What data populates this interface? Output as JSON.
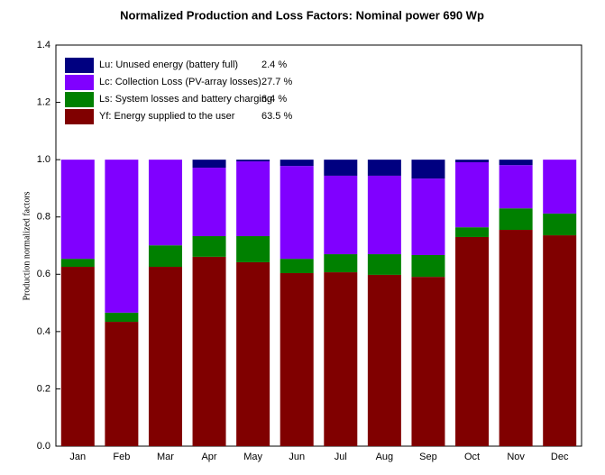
{
  "chart_data": {
    "type": "stacked_bar",
    "title": "Normalized Production and Loss Factors:  Nominal power 690 Wp",
    "y_label": "Production normalized factors",
    "categories": [
      "Jan",
      "Feb",
      "Mar",
      "Apr",
      "May",
      "Jun",
      "Jul",
      "Aug",
      "Sep",
      "Oct",
      "Nov",
      "Dec"
    ],
    "ylim": [
      0,
      1.4
    ],
    "yticks": [
      {
        "value": 0,
        "label": "0.0"
      },
      0.2,
      0.4,
      0.6,
      0.8,
      {
        "value": 1,
        "label": "1.0"
      },
      1.2,
      1.4
    ],
    "series": [
      {
        "name": "Yf: Energy supplied to the user",
        "share": "63.5 %",
        "color": "#800000",
        "values": [
          0.626,
          0.434,
          0.626,
          0.661,
          0.642,
          0.604,
          0.607,
          0.598,
          0.591,
          0.73,
          0.755,
          0.736
        ]
      },
      {
        "name": "Ls: System losses and battery charging",
        "share": "6.4 %",
        "color": "#008000",
        "values": [
          0.028,
          0.032,
          0.075,
          0.072,
          0.091,
          0.05,
          0.063,
          0.072,
          0.076,
          0.034,
          0.075,
          0.076
        ]
      },
      {
        "name": "Lc: Collection Loss (PV-array losses)",
        "share": "27.7 %",
        "color": "#8000ff",
        "values": [
          0.346,
          0.534,
          0.299,
          0.239,
          0.261,
          0.324,
          0.274,
          0.274,
          0.267,
          0.227,
          0.151,
          0.188
        ]
      },
      {
        "name": "Lu: Unused energy (battery full)",
        "share": "2.4 %",
        "color": "#000080",
        "values": [
          0,
          0,
          0,
          0.028,
          0.006,
          0.022,
          0.056,
          0.056,
          0.066,
          0.009,
          0.019,
          0
        ]
      }
    ]
  }
}
